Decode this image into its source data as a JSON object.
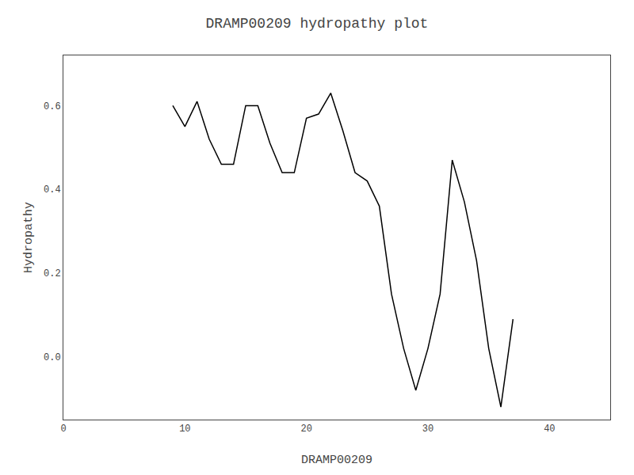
{
  "chart_data": {
    "type": "line",
    "title": "DRAMP00209 hydropathy plot",
    "xlabel": "DRAMP00209",
    "ylabel": "Hydropathy",
    "x": [
      9,
      10,
      11,
      12,
      13,
      14,
      15,
      16,
      17,
      18,
      19,
      20,
      21,
      22,
      23,
      24,
      25,
      26,
      27,
      28,
      29,
      30,
      31,
      32,
      33,
      34,
      35,
      36,
      37
    ],
    "values": [
      0.6,
      0.55,
      0.61,
      0.52,
      0.46,
      0.46,
      0.6,
      0.6,
      0.51,
      0.44,
      0.44,
      0.57,
      0.58,
      0.63,
      0.54,
      0.44,
      0.42,
      0.36,
      0.15,
      0.02,
      -0.08,
      0.02,
      0.15,
      0.47,
      0.37,
      0.23,
      0.02,
      -0.12,
      0.09
    ],
    "color": "#000000",
    "xlim": [
      0,
      45
    ],
    "ylim": [
      -0.15,
      0.72
    ],
    "xticks": [
      0,
      10,
      20,
      30,
      40
    ],
    "yticks": [
      {
        "value": 0.0,
        "label": "0.0"
      },
      0.2,
      0.4,
      0.6
    ],
    "grid": false
  }
}
